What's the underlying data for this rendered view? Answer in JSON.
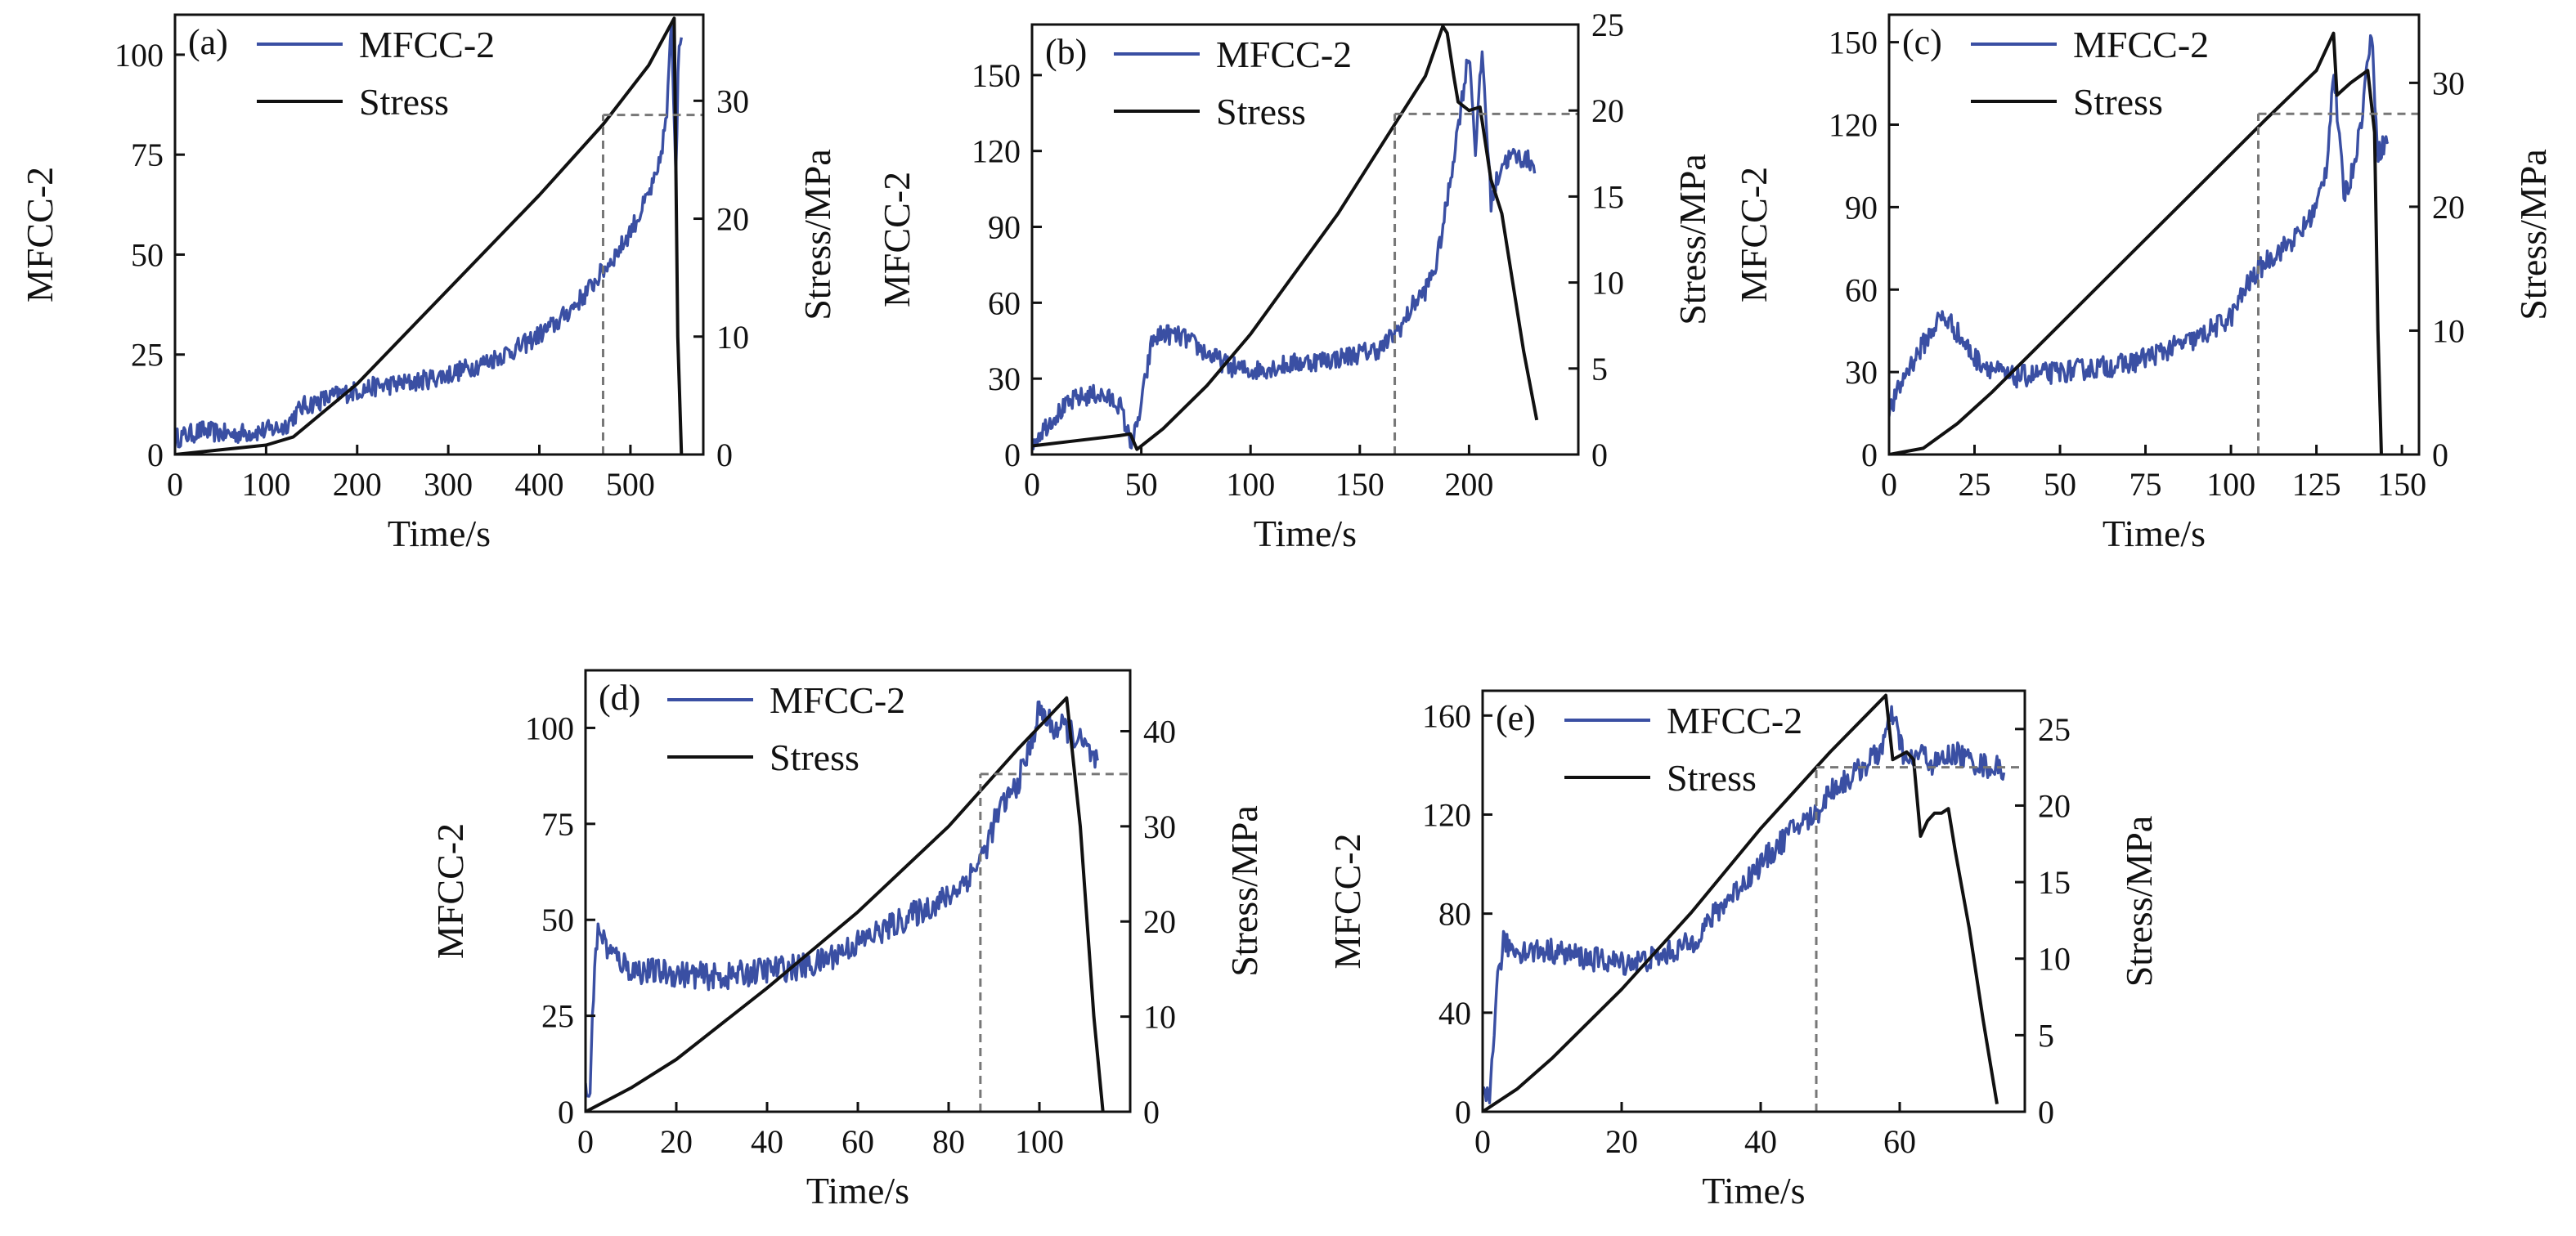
{
  "figure": {
    "x_axis_label": "Time/s",
    "left_axis_label": "MFCC-2",
    "right_axis_label": "Stress/MPa",
    "legend": {
      "mfcc_label": "MFCC-2",
      "stress_label": "Stress"
    },
    "colors": {
      "mfcc": "#3a4fa3",
      "stress": "#111111",
      "reference": "#777777"
    }
  },
  "chart_data": [
    {
      "panel": "(a)",
      "type": "line",
      "xlim": [
        0,
        580
      ],
      "x_ticks": [
        0,
        100,
        200,
        300,
        400,
        500
      ],
      "y_left_lim": [
        0,
        110
      ],
      "y_left_ticks": [
        0,
        25,
        50,
        75,
        100
      ],
      "y_right_lim": [
        0,
        37.3
      ],
      "y_right_ticks": [
        0,
        10,
        20,
        30
      ],
      "mfcc": {
        "noise": 2.5,
        "x": [
          0,
          30,
          60,
          100,
          120,
          140,
          180,
          220,
          260,
          300,
          340,
          380,
          420,
          450,
          470,
          490,
          510,
          530,
          540,
          545,
          550,
          553,
          556
        ],
        "y": [
          4,
          6,
          5,
          6,
          7,
          12,
          15,
          17,
          18,
          20,
          23,
          27,
          33,
          40,
          46,
          52,
          60,
          70,
          85,
          108,
          70,
          105,
          102
        ]
      },
      "stress": {
        "x": [
          0,
          50,
          100,
          130,
          200,
          300,
          400,
          470,
          520,
          548,
          552,
          556
        ],
        "y": [
          0,
          0.4,
          0.8,
          1.5,
          6,
          14,
          22,
          28,
          33,
          37,
          10,
          0
        ]
      },
      "reference": {
        "time": 470,
        "stress": 28.8
      }
    },
    {
      "panel": "(b)",
      "type": "line",
      "xlim": [
        0,
        250
      ],
      "x_ticks": [
        0,
        50,
        100,
        150,
        200
      ],
      "y_left_lim": [
        0,
        170
      ],
      "y_left_ticks": [
        0,
        30,
        60,
        90,
        120,
        150
      ],
      "y_right_lim": [
        0,
        25
      ],
      "y_right_ticks": [
        0,
        5,
        10,
        15,
        20,
        25
      ],
      "mfcc": {
        "noise": 4,
        "x": [
          0,
          10,
          20,
          30,
          40,
          45,
          48,
          52,
          55,
          60,
          70,
          80,
          90,
          100,
          120,
          140,
          160,
          170,
          175,
          180,
          185,
          190,
          195,
          200,
          203,
          206,
          210,
          215,
          220,
          225,
          230
        ],
        "y": [
          5,
          15,
          22,
          24,
          20,
          5,
          10,
          30,
          45,
          48,
          46,
          40,
          35,
          33,
          36,
          38,
          42,
          52,
          60,
          65,
          75,
          100,
          130,
          160,
          120,
          160,
          100,
          115,
          118,
          117,
          115
        ]
      },
      "stress": {
        "x": [
          0,
          20,
          40,
          45,
          48,
          60,
          80,
          100,
          120,
          140,
          160,
          170,
          180,
          188,
          190,
          193,
          195,
          200,
          205,
          210,
          215,
          220,
          225,
          231
        ],
        "y": [
          0.5,
          0.8,
          1.1,
          1.2,
          0.3,
          1.5,
          4,
          7,
          10.5,
          14,
          18,
          20,
          22,
          24.9,
          24.5,
          22,
          20.5,
          20,
          20.2,
          16,
          14,
          10,
          6,
          2
        ]
      },
      "reference": {
        "time": 166,
        "stress": 19.8
      }
    },
    {
      "panel": "(c)",
      "type": "line",
      "xlim": [
        0,
        155
      ],
      "x_ticks": [
        0,
        25,
        50,
        75,
        100,
        125,
        150
      ],
      "y_left_lim": [
        0,
        160
      ],
      "y_left_ticks": [
        0,
        30,
        60,
        90,
        120,
        150
      ],
      "y_right_lim": [
        0,
        35.5
      ],
      "y_right_ticks": [
        0,
        10,
        20,
        30
      ],
      "mfcc": {
        "noise": 4,
        "x": [
          0,
          5,
          10,
          15,
          18,
          25,
          35,
          50,
          70,
          90,
          100,
          105,
          110,
          115,
          120,
          125,
          128,
          130,
          133,
          135,
          138,
          141,
          143,
          146
        ],
        "y": [
          15,
          30,
          40,
          50,
          48,
          35,
          28,
          30,
          33,
          42,
          50,
          62,
          70,
          75,
          80,
          90,
          105,
          140,
          95,
          100,
          120,
          155,
          110,
          115
        ]
      },
      "stress": {
        "x": [
          0,
          10,
          20,
          30,
          50,
          70,
          90,
          110,
          125,
          130,
          131,
          133,
          135,
          140,
          142,
          143,
          144
        ],
        "y": [
          0,
          0.5,
          2.5,
          5,
          10.5,
          16,
          21.5,
          27,
          31,
          34,
          29,
          29.5,
          30,
          31,
          26,
          10,
          0
        ]
      },
      "reference": {
        "time": 108,
        "stress": 27.5
      }
    },
    {
      "panel": "(d)",
      "type": "line",
      "xlim": [
        0,
        120
      ],
      "x_ticks": [
        0,
        20,
        40,
        60,
        80,
        100
      ],
      "y_left_lim": [
        0,
        115
      ],
      "y_left_ticks": [
        0,
        25,
        50,
        75,
        100
      ],
      "y_right_lim": [
        0,
        46.4
      ],
      "y_right_ticks": [
        0,
        10,
        20,
        30,
        40
      ],
      "mfcc": {
        "noise": 3.5,
        "x": [
          0,
          1,
          2,
          3,
          5,
          10,
          20,
          30,
          40,
          50,
          60,
          70,
          80,
          85,
          88,
          90,
          92,
          95,
          98,
          100,
          103,
          106,
          110,
          113
        ],
        "y": [
          5,
          5,
          40,
          48,
          42,
          37,
          36,
          35,
          37,
          38,
          44,
          50,
          56,
          62,
          68,
          75,
          80,
          85,
          95,
          105,
          100,
          100,
          95,
          90
        ]
      },
      "stress": {
        "x": [
          0,
          10,
          20,
          40,
          60,
          80,
          95,
          106,
          109,
          112,
          114
        ],
        "y": [
          0,
          2.5,
          5.5,
          13,
          21,
          30,
          38,
          43.5,
          30,
          10,
          0
        ]
      },
      "reference": {
        "time": 87,
        "stress": 35.5
      }
    },
    {
      "panel": "(e)",
      "type": "line",
      "xlim": [
        0,
        78
      ],
      "x_ticks": [
        0,
        20,
        40,
        60
      ],
      "y_left_lim": [
        0,
        170
      ],
      "y_left_ticks": [
        0,
        40,
        80,
        120,
        160
      ],
      "y_right_lim": [
        0,
        27.5
      ],
      "y_right_ticks": [
        0,
        5,
        10,
        15,
        20,
        25
      ],
      "mfcc": {
        "noise": 5,
        "x": [
          0,
          1,
          2,
          3,
          5,
          10,
          15,
          20,
          25,
          30,
          35,
          40,
          45,
          48,
          50,
          53,
          55,
          57,
          59,
          61,
          63,
          65,
          68,
          70,
          72,
          75
        ],
        "y": [
          5,
          5,
          50,
          68,
          65,
          65,
          62,
          60,
          62,
          68,
          85,
          100,
          115,
          120,
          130,
          135,
          140,
          145,
          160,
          140,
          145,
          140,
          145,
          142,
          140,
          138
        ]
      },
      "stress": {
        "x": [
          0,
          5,
          10,
          20,
          30,
          40,
          50,
          58,
          59,
          61,
          62,
          63,
          64,
          65,
          66,
          67,
          68,
          70,
          72,
          74
        ],
        "y": [
          0,
          1.5,
          3.5,
          8,
          13,
          18.5,
          23.5,
          27.2,
          23,
          23.5,
          23,
          18,
          19,
          19.5,
          19.5,
          19.8,
          17,
          12,
          6,
          0.5
        ]
      },
      "reference": {
        "time": 48,
        "stress": 22.5
      }
    }
  ]
}
